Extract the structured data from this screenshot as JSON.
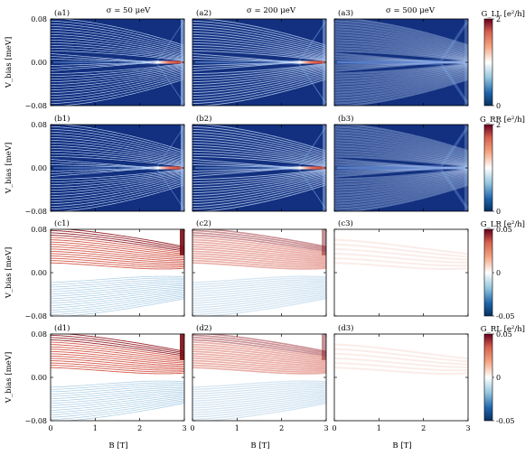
{
  "chart_data": {
    "type": "heatmap",
    "column_titles": [
      "σ = 50 μeV",
      "σ = 200 μeV",
      "σ = 500 μeV"
    ],
    "xlabel": "B [T]",
    "xlim": [
      0,
      3
    ],
    "xticks": [
      "0",
      "1",
      "2",
      "3"
    ],
    "rows": [
      {
        "name": "G_LL",
        "colorbar_label": "G_LL [e²/h]",
        "panel_labels": [
          "(a1)",
          "(a2)",
          "(a3)"
        ],
        "ylabel": "V_bias [meV]",
        "ylim": [
          -0.08,
          0.08
        ],
        "yticks": [
          "0.08",
          "0.00",
          "−0.08"
        ],
        "colorbar_range": [
          0,
          2
        ],
        "colorbar_ticks": [
          "2",
          "0"
        ],
        "colormap": "RdBu_r (blue = 0, white = 1, red = 2)",
        "features": "conductance resonances symmetric in V_bias, merging into zero-bias peak near B ≈ 2.4 T; smeared with increasing σ"
      },
      {
        "name": "G_RR",
        "colorbar_label": "G_RR [e²/h]",
        "panel_labels": [
          "(b1)",
          "(b2)",
          "(b3)"
        ],
        "ylabel": "V_bias [meV]",
        "ylim": [
          -0.08,
          0.08
        ],
        "yticks": [
          "0.08",
          "0.00",
          "−0.08"
        ],
        "colorbar_range": [
          0,
          2
        ],
        "colorbar_ticks": [
          "2",
          "0"
        ],
        "colormap": "RdBu_r",
        "features": "same as G_LL"
      },
      {
        "name": "G_LR",
        "colorbar_label": "G_LR [e²/h]",
        "panel_labels": [
          "(c1)",
          "(c2)",
          "(c3)"
        ],
        "ylabel": "V_bias [meV]",
        "ylim": [
          -0.08,
          0.08
        ],
        "yticks": [
          "0.08",
          "0.00",
          "−0.08"
        ],
        "colorbar_range": [
          -0.05,
          0.05
        ],
        "colorbar_ticks": [
          "0.05",
          "0",
          "-0.05"
        ],
        "colormap": "RdBu_r",
        "features": "positive (red) lines at positive bias, negative (blue) lines at negative bias; nearly vanishing for σ = 500 μeV"
      },
      {
        "name": "G_RL",
        "colorbar_label": "G_RL [e²/h]",
        "panel_labels": [
          "(d1)",
          "(d2)",
          "(d3)"
        ],
        "ylabel": "V_bias [meV]",
        "ylim": [
          -0.08,
          0.08
        ],
        "yticks": [
          "0.08",
          "0.00",
          "−0.08"
        ],
        "colorbar_range": [
          -0.05,
          0.05
        ],
        "colorbar_ticks": [
          "0.05",
          "0",
          "-0.05"
        ],
        "colormap": "RdBu_r",
        "features": "same as G_LR"
      }
    ],
    "grid": false,
    "legend": "colorbar at right of each row"
  },
  "colors": {
    "deep_blue": "#12307f",
    "white": "#ffffff",
    "deep_red": "#a50f15"
  }
}
